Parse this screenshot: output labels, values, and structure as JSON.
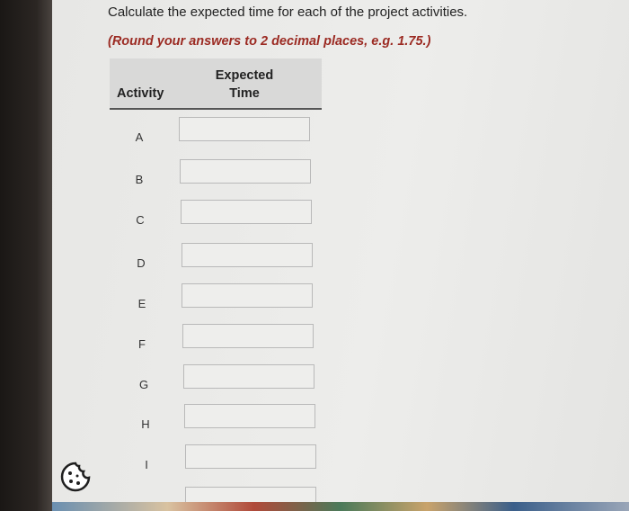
{
  "instructions": {
    "question": "Calculate the expected time for each of the project activities.",
    "note": "(Round your answers to 2 decimal places, e.g. 1.75.)"
  },
  "table": {
    "headers": [
      "Activity",
      "Expected Time"
    ],
    "rows": [
      [
        "A"
      ],
      [
        "B"
      ],
      [
        "C"
      ],
      [
        "D"
      ],
      [
        "E"
      ],
      [
        "F"
      ],
      [
        "G"
      ],
      [
        "H"
      ],
      [
        "I"
      ]
    ]
  }
}
